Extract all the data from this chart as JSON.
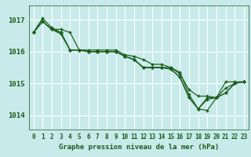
{
  "title": "Graphe pression niveau de la mer (hPa)",
  "bg_color": "#c8eaea",
  "plot_bg_color": "#c8eaea",
  "grid_color": "#ffffff",
  "line_color": "#1a5c1a",
  "marker_color": "#1a5c1a",
  "tick_label_color": "#1a5c1a",
  "title_color": "#1a5c1a",
  "bottom_bg": "#5a8a5a",
  "xlim": [
    -0.5,
    23.5
  ],
  "ylim": [
    1013.55,
    1017.45
  ],
  "yticks": [
    1014,
    1015,
    1016,
    1017
  ],
  "xtick_labels": [
    "0",
    "1",
    "2",
    "3",
    "4",
    "5",
    "6",
    "7",
    "8",
    "9",
    "10",
    "11",
    "12",
    "13",
    "14",
    "15",
    "16",
    "17",
    "18",
    "19",
    "20",
    "21",
    "22",
    "23"
  ],
  "series": [
    [
      1016.6,
      1016.95,
      1016.7,
      1016.7,
      1016.6,
      1016.05,
      1016.05,
      1016.05,
      1016.05,
      1016.05,
      1015.9,
      1015.85,
      1015.75,
      1015.6,
      1015.6,
      1015.5,
      1015.3,
      1014.8,
      1014.6,
      1014.6,
      1014.55,
      1015.05,
      1015.05,
      1015.05
    ],
    [
      1016.6,
      1017.05,
      1016.75,
      1016.6,
      1016.05,
      1016.05,
      1016.0,
      1016.0,
      1016.0,
      1016.0,
      1015.85,
      1015.75,
      1015.5,
      1015.5,
      1015.5,
      1015.5,
      1015.35,
      1014.65,
      1014.2,
      1014.5,
      1014.55,
      1014.7,
      1015.0,
      1015.05
    ],
    [
      1016.6,
      1016.95,
      1016.7,
      1016.55,
      1016.05,
      1016.05,
      1016.0,
      1016.0,
      1016.0,
      1016.0,
      1015.85,
      1015.75,
      1015.5,
      1015.5,
      1015.5,
      1015.45,
      1015.2,
      1014.55,
      1014.2,
      1014.15,
      1014.55,
      1014.7,
      1015.0,
      1015.05
    ],
    [
      1016.6,
      1016.95,
      1016.7,
      1016.6,
      1016.05,
      1016.05,
      1016.0,
      1016.0,
      1016.0,
      1016.0,
      1015.85,
      1015.75,
      1015.5,
      1015.5,
      1015.5,
      1015.45,
      1015.2,
      1014.55,
      1014.2,
      1014.55,
      1014.55,
      1014.85,
      1015.0,
      1015.05
    ]
  ]
}
